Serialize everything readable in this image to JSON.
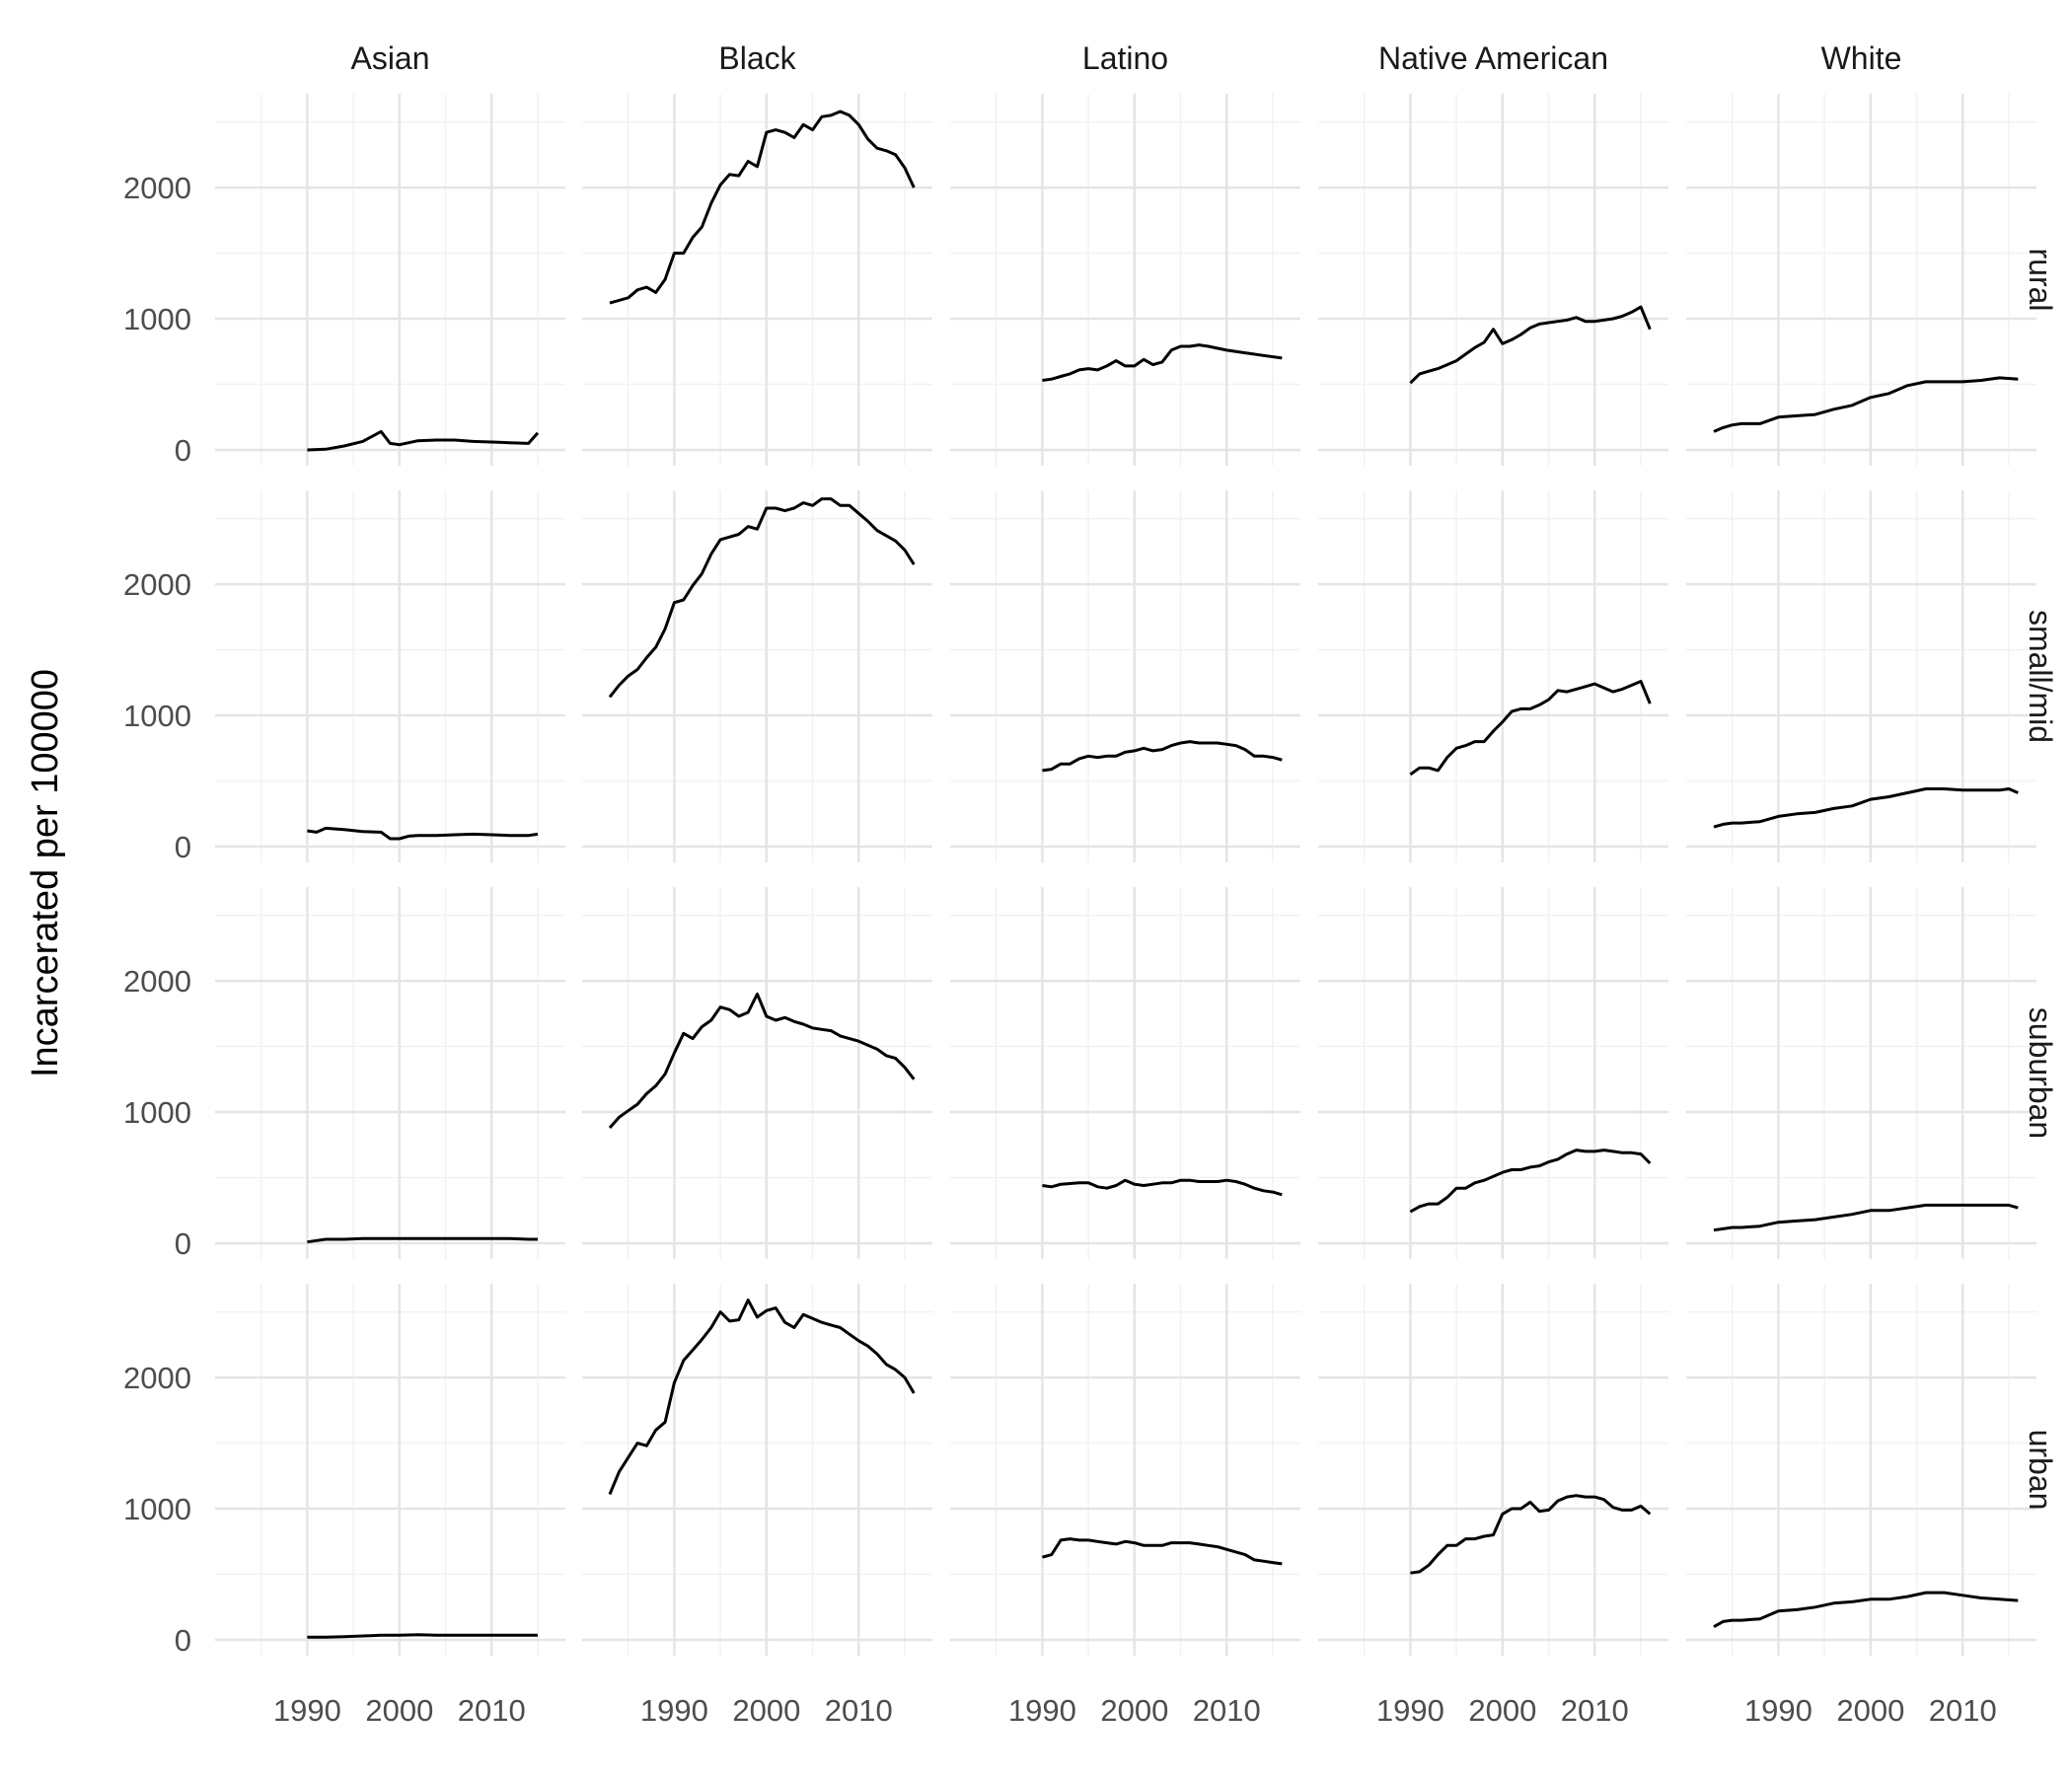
{
  "chart_data": {
    "type": "line",
    "facet_columns": [
      "Asian",
      "Black",
      "Latino",
      "Native American",
      "White"
    ],
    "facet_rows": [
      "rural",
      "small/mid",
      "suburban",
      "urban"
    ],
    "ylabel": "Incarcerated per 100000",
    "xlabel": "",
    "xlim": [
      1980,
      2018
    ],
    "ylim": [
      0,
      2700
    ],
    "x_ticks": [
      1990,
      2000,
      2010
    ],
    "y_ticks": [
      0,
      1000,
      2000
    ],
    "grid": true,
    "line_color": "#000000",
    "panels": [
      {
        "row": "rural",
        "col": "Asian",
        "x": [
          1990,
          1992,
          1994,
          1996,
          1998,
          1999,
          2000,
          2002,
          2004,
          2006,
          2008,
          2010,
          2012,
          2014,
          2015
        ],
        "y": [
          0,
          5,
          30,
          65,
          140,
          50,
          40,
          70,
          75,
          75,
          65,
          60,
          55,
          50,
          130
        ]
      },
      {
        "row": "rural",
        "col": "Black",
        "x": [
          1983,
          1985,
          1986,
          1987,
          1988,
          1989,
          1990,
          1991,
          1992,
          1993,
          1994,
          1995,
          1996,
          1997,
          1998,
          1999,
          2000,
          2001,
          2002,
          2003,
          2004,
          2005,
          2006,
          2007,
          2008,
          2009,
          2010,
          2011,
          2012,
          2013,
          2014,
          2015,
          2016
        ],
        "y": [
          1120,
          1160,
          1220,
          1240,
          1200,
          1300,
          1500,
          1500,
          1620,
          1700,
          1880,
          2020,
          2100,
          2090,
          2200,
          2160,
          2420,
          2440,
          2420,
          2380,
          2480,
          2440,
          2540,
          2550,
          2580,
          2550,
          2480,
          2370,
          2300,
          2280,
          2250,
          2150,
          2000
        ]
      },
      {
        "row": "rural",
        "col": "Latino",
        "x": [
          1990,
          1991,
          1992,
          1993,
          1994,
          1995,
          1996,
          1997,
          1998,
          1999,
          2000,
          2001,
          2002,
          2003,
          2004,
          2005,
          2006,
          2007,
          2008,
          2010,
          2012,
          2014,
          2016
        ],
        "y": [
          530,
          540,
          560,
          580,
          610,
          620,
          610,
          640,
          680,
          640,
          640,
          690,
          650,
          670,
          760,
          790,
          790,
          800,
          790,
          760,
          740,
          720,
          700
        ]
      },
      {
        "row": "rural",
        "col": "Native American",
        "x": [
          1990,
          1991,
          1992,
          1993,
          1994,
          1995,
          1996,
          1997,
          1998,
          1999,
          2000,
          2001,
          2002,
          2003,
          2004,
          2005,
          2006,
          2007,
          2008,
          2009,
          2010,
          2011,
          2012,
          2013,
          2014,
          2015,
          2016
        ],
        "y": [
          510,
          580,
          600,
          620,
          650,
          680,
          730,
          780,
          820,
          920,
          810,
          840,
          880,
          930,
          960,
          970,
          980,
          990,
          1010,
          980,
          980,
          990,
          1000,
          1020,
          1050,
          1090,
          920
        ]
      },
      {
        "row": "rural",
        "col": "White",
        "x": [
          1983,
          1984,
          1985,
          1986,
          1988,
          1990,
          1992,
          1994,
          1996,
          1998,
          2000,
          2002,
          2004,
          2006,
          2008,
          2010,
          2012,
          2014,
          2016
        ],
        "y": [
          140,
          170,
          190,
          200,
          200,
          250,
          260,
          270,
          310,
          340,
          400,
          430,
          490,
          520,
          520,
          520,
          530,
          550,
          540
        ]
      },
      {
        "row": "small/mid",
        "col": "Asian",
        "x": [
          1990,
          1991,
          1992,
          1994,
          1996,
          1998,
          1999,
          2000,
          2001,
          2002,
          2004,
          2006,
          2008,
          2010,
          2012,
          2014,
          2015
        ],
        "y": [
          120,
          110,
          140,
          130,
          115,
          110,
          60,
          60,
          80,
          85,
          85,
          90,
          95,
          90,
          85,
          85,
          95
        ]
      },
      {
        "row": "small/mid",
        "col": "Black",
        "x": [
          1983,
          1984,
          1985,
          1986,
          1987,
          1988,
          1989,
          1990,
          1991,
          1992,
          1993,
          1994,
          1995,
          1996,
          1997,
          1998,
          1999,
          2000,
          2001,
          2002,
          2003,
          2004,
          2005,
          2006,
          2007,
          2008,
          2009,
          2010,
          2011,
          2012,
          2013,
          2014,
          2015,
          2016
        ],
        "y": [
          1140,
          1230,
          1300,
          1350,
          1440,
          1520,
          1660,
          1860,
          1880,
          1990,
          2080,
          2230,
          2340,
          2360,
          2380,
          2440,
          2420,
          2580,
          2580,
          2560,
          2580,
          2620,
          2600,
          2650,
          2650,
          2600,
          2600,
          2540,
          2480,
          2410,
          2370,
          2330,
          2260,
          2150
        ]
      },
      {
        "row": "small/mid",
        "col": "Latino",
        "x": [
          1990,
          1991,
          1992,
          1993,
          1994,
          1995,
          1996,
          1997,
          1998,
          1999,
          2000,
          2001,
          2002,
          2003,
          2004,
          2005,
          2006,
          2007,
          2008,
          2009,
          2010,
          2011,
          2012,
          2013,
          2014,
          2015,
          2016
        ],
        "y": [
          580,
          590,
          630,
          630,
          670,
          690,
          680,
          690,
          690,
          720,
          730,
          750,
          730,
          740,
          770,
          790,
          800,
          790,
          790,
          790,
          780,
          770,
          740,
          690,
          690,
          680,
          660
        ]
      },
      {
        "row": "small/mid",
        "col": "Native American",
        "x": [
          1990,
          1991,
          1992,
          1993,
          1994,
          1995,
          1996,
          1997,
          1998,
          1999,
          2000,
          2001,
          2002,
          2003,
          2004,
          2005,
          2006,
          2007,
          2008,
          2009,
          2010,
          2011,
          2012,
          2013,
          2014,
          2015,
          2016
        ],
        "y": [
          550,
          600,
          600,
          580,
          680,
          750,
          770,
          800,
          800,
          880,
          950,
          1030,
          1050,
          1050,
          1080,
          1120,
          1190,
          1180,
          1200,
          1220,
          1240,
          1210,
          1180,
          1200,
          1230,
          1260,
          1090
        ]
      },
      {
        "row": "small/mid",
        "col": "White",
        "x": [
          1983,
          1984,
          1985,
          1986,
          1988,
          1990,
          1992,
          1994,
          1996,
          1998,
          2000,
          2002,
          2004,
          2006,
          2008,
          2010,
          2012,
          2014,
          2015,
          2016
        ],
        "y": [
          150,
          170,
          180,
          180,
          190,
          230,
          250,
          260,
          290,
          310,
          360,
          380,
          410,
          440,
          440,
          430,
          430,
          430,
          440,
          410
        ]
      },
      {
        "row": "suburban",
        "col": "Asian",
        "x": [
          1990,
          1991,
          1992,
          1994,
          1996,
          1998,
          2000,
          2002,
          2004,
          2006,
          2008,
          2010,
          2012,
          2014,
          2015
        ],
        "y": [
          10,
          20,
          30,
          30,
          35,
          35,
          35,
          35,
          35,
          35,
          35,
          35,
          35,
          30,
          30
        ]
      },
      {
        "row": "suburban",
        "col": "Black",
        "x": [
          1983,
          1984,
          1985,
          1986,
          1987,
          1988,
          1989,
          1990,
          1991,
          1992,
          1993,
          1994,
          1995,
          1996,
          1997,
          1998,
          1999,
          2000,
          2001,
          2002,
          2003,
          2004,
          2005,
          2006,
          2007,
          2008,
          2009,
          2010,
          2011,
          2012,
          2013,
          2014,
          2015,
          2016
        ],
        "y": [
          880,
          960,
          1010,
          1060,
          1140,
          1200,
          1290,
          1450,
          1600,
          1560,
          1650,
          1700,
          1800,
          1780,
          1730,
          1760,
          1900,
          1730,
          1700,
          1720,
          1690,
          1670,
          1640,
          1630,
          1620,
          1580,
          1560,
          1540,
          1510,
          1480,
          1430,
          1410,
          1340,
          1250
        ]
      },
      {
        "row": "suburban",
        "col": "Latino",
        "x": [
          1990,
          1991,
          1992,
          1994,
          1995,
          1996,
          1997,
          1998,
          1999,
          2000,
          2001,
          2002,
          2003,
          2004,
          2005,
          2006,
          2007,
          2008,
          2009,
          2010,
          2011,
          2012,
          2013,
          2014,
          2015,
          2016
        ],
        "y": [
          440,
          430,
          450,
          460,
          460,
          430,
          420,
          440,
          480,
          450,
          440,
          450,
          460,
          460,
          480,
          480,
          470,
          470,
          470,
          480,
          470,
          450,
          420,
          400,
          390,
          370
        ]
      },
      {
        "row": "suburban",
        "col": "Native American",
        "x": [
          1990,
          1991,
          1992,
          1993,
          1994,
          1995,
          1996,
          1997,
          1998,
          1999,
          2000,
          2001,
          2002,
          2003,
          2004,
          2005,
          2006,
          2007,
          2008,
          2009,
          2010,
          2011,
          2012,
          2013,
          2014,
          2015,
          2016
        ],
        "y": [
          240,
          280,
          300,
          300,
          350,
          420,
          420,
          460,
          480,
          510,
          540,
          560,
          560,
          580,
          590,
          620,
          640,
          680,
          710,
          700,
          700,
          710,
          700,
          690,
          690,
          680,
          610
        ]
      },
      {
        "row": "suburban",
        "col": "White",
        "x": [
          1983,
          1984,
          1985,
          1986,
          1988,
          1990,
          1992,
          1994,
          1996,
          1998,
          2000,
          2002,
          2004,
          2006,
          2008,
          2010,
          2012,
          2014,
          2015,
          2016
        ],
        "y": [
          100,
          110,
          120,
          120,
          130,
          160,
          170,
          180,
          200,
          220,
          250,
          250,
          270,
          290,
          290,
          290,
          290,
          290,
          290,
          270
        ]
      },
      {
        "row": "urban",
        "col": "Asian",
        "x": [
          1990,
          1992,
          1994,
          1996,
          1998,
          2000,
          2002,
          2004,
          2006,
          2008,
          2010,
          2012,
          2014,
          2015
        ],
        "y": [
          20,
          20,
          25,
          30,
          35,
          35,
          40,
          35,
          35,
          35,
          35,
          35,
          35,
          35
        ]
      },
      {
        "row": "urban",
        "col": "Black",
        "x": [
          1983,
          1984,
          1985,
          1986,
          1987,
          1988,
          1989,
          1990,
          1991,
          1992,
          1993,
          1994,
          1995,
          1996,
          1997,
          1998,
          1999,
          2000,
          2001,
          2002,
          2003,
          2004,
          2005,
          2006,
          2007,
          2008,
          2009,
          2010,
          2011,
          2012,
          2013,
          2014,
          2015,
          2016
        ],
        "y": [
          1110,
          1280,
          1390,
          1500,
          1480,
          1600,
          1660,
          1960,
          2130,
          2210,
          2290,
          2380,
          2500,
          2430,
          2440,
          2590,
          2460,
          2510,
          2530,
          2420,
          2380,
          2480,
          2450,
          2420,
          2400,
          2380,
          2330,
          2280,
          2240,
          2180,
          2100,
          2060,
          2000,
          1880
        ]
      },
      {
        "row": "urban",
        "col": "Latino",
        "x": [
          1990,
          1991,
          1992,
          1993,
          1994,
          1995,
          1996,
          1997,
          1998,
          1999,
          2000,
          2001,
          2002,
          2003,
          2004,
          2005,
          2006,
          2007,
          2008,
          2009,
          2010,
          2011,
          2012,
          2013,
          2014,
          2015,
          2016
        ],
        "y": [
          630,
          650,
          760,
          770,
          760,
          760,
          750,
          740,
          730,
          750,
          740,
          720,
          720,
          720,
          740,
          740,
          740,
          730,
          720,
          710,
          690,
          670,
          650,
          610,
          600,
          590,
          580
        ]
      },
      {
        "row": "urban",
        "col": "Native American",
        "x": [
          1990,
          1991,
          1992,
          1993,
          1994,
          1995,
          1996,
          1997,
          1998,
          1999,
          2000,
          2001,
          2002,
          2003,
          2004,
          2005,
          2006,
          2007,
          2008,
          2009,
          2010,
          2011,
          2012,
          2013,
          2014,
          2015,
          2016
        ],
        "y": [
          510,
          520,
          570,
          650,
          720,
          720,
          770,
          770,
          790,
          800,
          960,
          1000,
          1000,
          1050,
          980,
          990,
          1060,
          1090,
          1100,
          1090,
          1090,
          1070,
          1010,
          990,
          990,
          1020,
          960
        ]
      },
      {
        "row": "urban",
        "col": "White",
        "x": [
          1983,
          1984,
          1985,
          1986,
          1988,
          1990,
          1992,
          1994,
          1996,
          1998,
          2000,
          2002,
          2004,
          2006,
          2008,
          2010,
          2012,
          2014,
          2016
        ],
        "y": [
          100,
          140,
          150,
          150,
          160,
          220,
          230,
          250,
          280,
          290,
          310,
          310,
          330,
          360,
          360,
          340,
          320,
          310,
          300
        ]
      }
    ]
  }
}
